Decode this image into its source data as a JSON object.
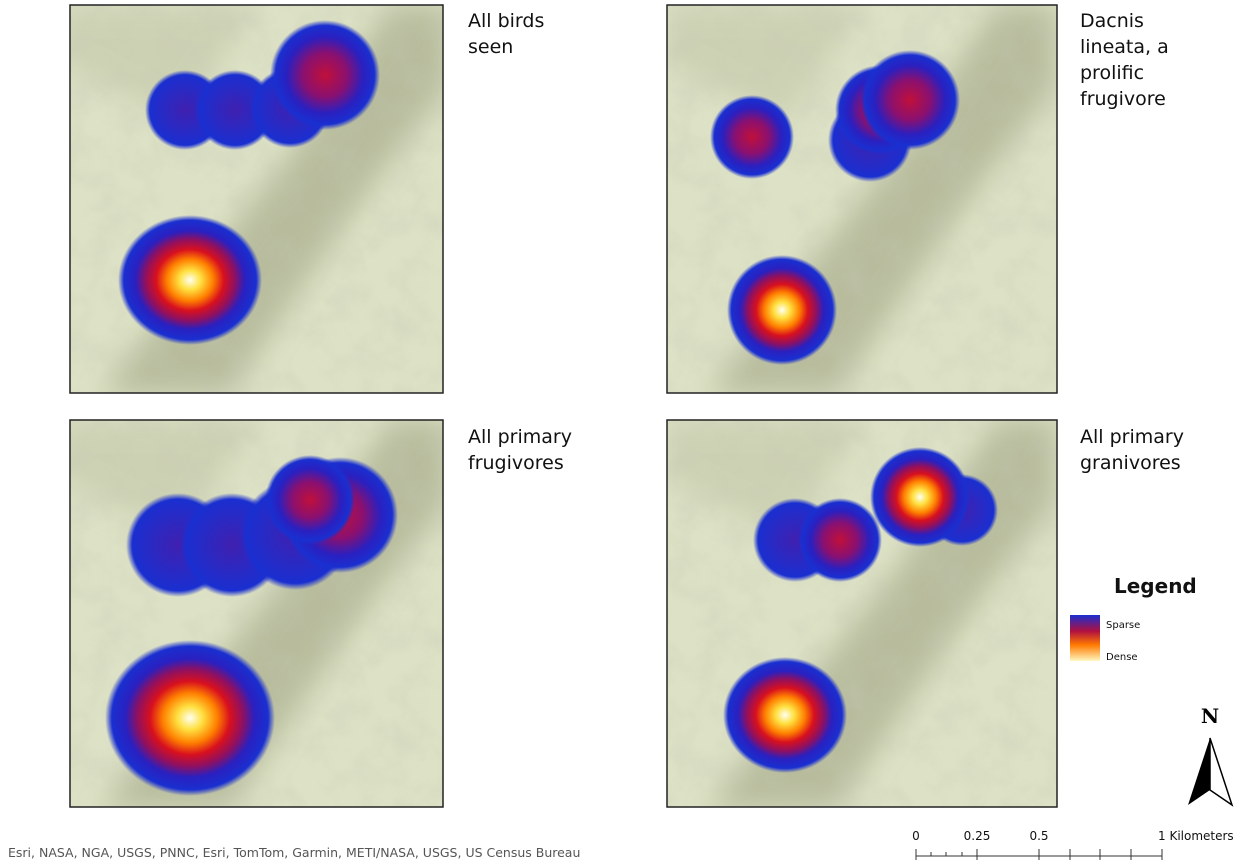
{
  "panels": [
    {
      "title_lines": [
        "All birds",
        "seen"
      ]
    },
    {
      "title_lines": [
        "Dacnis",
        "lineata, a",
        "prolific",
        "frugivore"
      ]
    },
    {
      "title_lines": [
        "All primary",
        "frugivores"
      ]
    },
    {
      "title_lines": [
        "All primary",
        "granivores"
      ]
    }
  ],
  "legend": {
    "title": "Legend",
    "high_label": "Sparse",
    "low_label": "Dense"
  },
  "north": "N",
  "scalebar": {
    "labels": [
      "0",
      "0.25",
      "0.5",
      "1 Kilometers"
    ]
  },
  "attribution": "Esri, NASA, NGA, USGS, PNNC, Esri, TomTom, Garmin, METI/NASA, USGS, US Census Bureau"
}
